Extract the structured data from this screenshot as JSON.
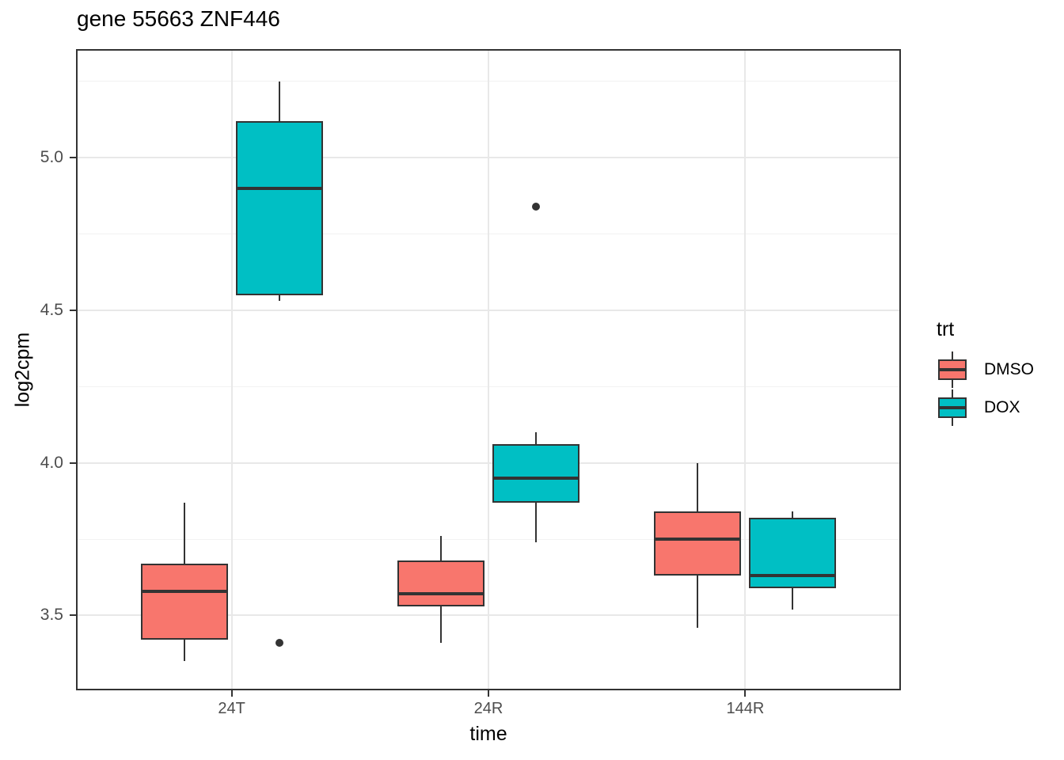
{
  "title": "gene 55663 ZNF446",
  "axes": {
    "x_title": "time",
    "y_title": "log2cpm",
    "y_ticks": [
      {
        "value": 3.5,
        "label": "3.5"
      },
      {
        "value": 4.0,
        "label": "4.0"
      },
      {
        "value": 4.5,
        "label": "4.5"
      },
      {
        "value": 5.0,
        "label": "5.0"
      }
    ]
  },
  "legend": {
    "title": "trt",
    "items": [
      {
        "label": "DMSO",
        "color": "#F8766D"
      },
      {
        "label": "DOX",
        "color": "#00BFC4"
      }
    ]
  },
  "chart_data": {
    "type": "boxplot",
    "title": "gene 55663 ZNF446",
    "xlabel": "time",
    "ylabel": "log2cpm",
    "categories": [
      "24T",
      "24R",
      "144R"
    ],
    "ylim": [
      3.26,
      5.35
    ],
    "yticks_major": [
      3.5,
      4.0,
      4.5,
      5.0
    ],
    "yticks_minor": [
      3.75,
      4.25,
      4.75,
      5.25
    ],
    "grid": "horizontal major+minor, vertical major at categories",
    "legend_position": "right",
    "legend_title": "trt",
    "series": [
      {
        "name": "DMSO",
        "color": "#F8766D",
        "boxes": [
          {
            "category": "24T",
            "whisker_low": 3.35,
            "q1": 3.42,
            "median": 3.58,
            "q3": 3.67,
            "whisker_high": 3.87,
            "outliers": []
          },
          {
            "category": "24R",
            "whisker_low": 3.41,
            "q1": 3.53,
            "median": 3.57,
            "q3": 3.68,
            "whisker_high": 3.76,
            "outliers": []
          },
          {
            "category": "144R",
            "whisker_low": 3.46,
            "q1": 3.63,
            "median": 3.75,
            "q3": 3.84,
            "whisker_high": 4.0,
            "outliers": []
          }
        ]
      },
      {
        "name": "DOX",
        "color": "#00BFC4",
        "boxes": [
          {
            "category": "24T",
            "whisker_low": 4.53,
            "q1": 4.55,
            "median": 4.9,
            "q3": 5.12,
            "whisker_high": 5.25,
            "outliers": [
              3.41
            ]
          },
          {
            "category": "24R",
            "whisker_low": 3.74,
            "q1": 3.87,
            "median": 3.95,
            "q3": 4.06,
            "whisker_high": 4.1,
            "outliers": [
              4.84
            ]
          },
          {
            "category": "144R",
            "whisker_low": 3.52,
            "q1": 3.59,
            "median": 3.63,
            "q3": 3.82,
            "whisker_high": 3.84,
            "outliers": []
          }
        ]
      }
    ],
    "style": {
      "box_border_color": "#333333",
      "median_color": "#333333",
      "outlier_color": "#333333",
      "grid_major_color": "#E8E8E8",
      "grid_minor_color": "#F2F2F2",
      "panel_border_color": "#333333",
      "tick_label_color": "#4d4d4d"
    }
  }
}
